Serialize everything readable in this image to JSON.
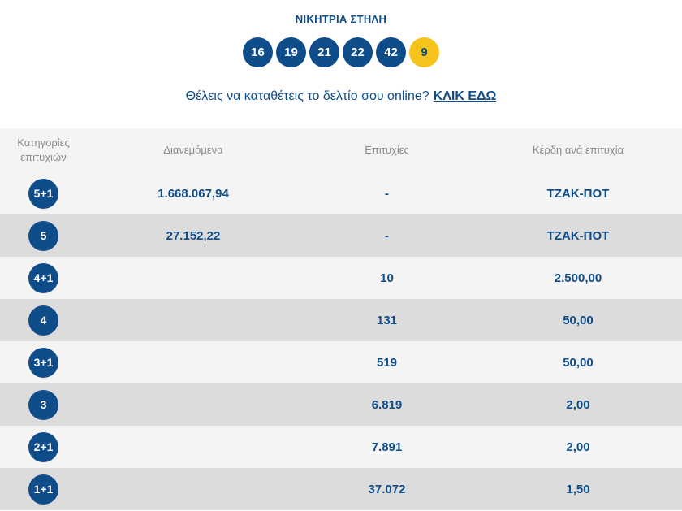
{
  "winning": {
    "title": "ΝΙΚΗΤΡΙΑ ΣΤΗΛΗ",
    "numbers": [
      "16",
      "19",
      "21",
      "22",
      "42"
    ],
    "bonus": "9"
  },
  "promo": {
    "text": "Θέλεις να καταθέτεις το δελτίο σου online?",
    "link": "ΚΛΙΚ ΕΔΩ"
  },
  "table": {
    "headers": {
      "category_line1": "Κατηγορίες",
      "category_line2": "επιτυχιών",
      "distributed": "Διανεμόμενα",
      "winners": "Επιτυχίες",
      "prize": "Κέρδη ανά επιτυχία"
    },
    "rows": [
      {
        "category": "5+1",
        "distributed": "1.668.067,94",
        "winners": "-",
        "prize": "ΤΖΑΚ-ΠΟΤ"
      },
      {
        "category": "5",
        "distributed": "27.152,22",
        "winners": "-",
        "prize": "ΤΖΑΚ-ΠΟΤ"
      },
      {
        "category": "4+1",
        "distributed": "",
        "winners": "10",
        "prize": "2.500,00"
      },
      {
        "category": "4",
        "distributed": "",
        "winners": "131",
        "prize": "50,00"
      },
      {
        "category": "3+1",
        "distributed": "",
        "winners": "519",
        "prize": "50,00"
      },
      {
        "category": "3",
        "distributed": "",
        "winners": "6.819",
        "prize": "2,00"
      },
      {
        "category": "2+1",
        "distributed": "",
        "winners": "7.891",
        "prize": "2,00"
      },
      {
        "category": "1+1",
        "distributed": "",
        "winners": "37.072",
        "prize": "1,50"
      }
    ]
  },
  "colors": {
    "primary": "#0e4c8a",
    "bonus_ball": "#f6c31c",
    "row_light": "#f4f4f4",
    "row_dark": "#dcdcdc"
  }
}
